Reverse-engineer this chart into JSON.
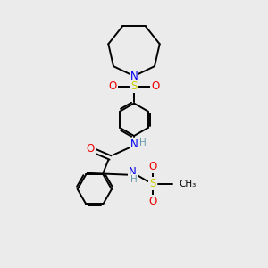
{
  "background_color": "#ebebeb",
  "bond_color": "#000000",
  "atom_colors": {
    "N": "#0000ee",
    "O": "#ee0000",
    "S": "#cccc00",
    "C": "#000000",
    "H": "#6699aa"
  },
  "figsize": [
    3.0,
    3.0
  ],
  "dpi": 100,
  "lw": 1.4,
  "fs": 8.5,
  "fs_small": 7.5
}
